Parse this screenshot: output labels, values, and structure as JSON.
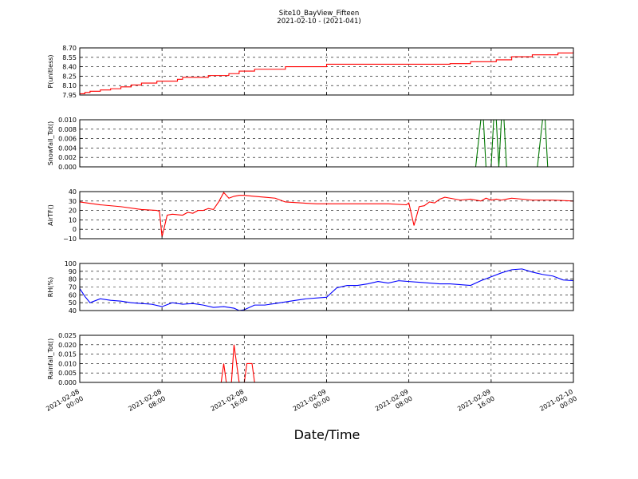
{
  "title": "Site10_BayView_Fifteen",
  "subtitle": "2021-02-10 - (2021-041)",
  "xlabel": "Date/Time",
  "x_ticks": [
    {
      "line1": "2021-02-08",
      "line2": "00:00"
    },
    {
      "line1": "2021-02-08",
      "line2": "08:00"
    },
    {
      "line1": "2021-02-08",
      "line2": "16:00"
    },
    {
      "line1": "2021-02-09",
      "line2": "00:00"
    },
    {
      "line1": "2021-02-09",
      "line2": "08:00"
    },
    {
      "line1": "2021-02-09",
      "line2": "16:00"
    },
    {
      "line1": "2021-02-10",
      "line2": "00:00"
    }
  ],
  "chart_data": [
    {
      "type": "line",
      "ylabel": "P(unitless)",
      "ylim": [
        7.95,
        8.7
      ],
      "yticks": [
        "7.95",
        "8.10",
        "8.25",
        "8.40",
        "8.55",
        "8.70"
      ],
      "ytick_values": [
        7.95,
        8.1,
        8.25,
        8.4,
        8.55,
        8.7
      ],
      "grid": true,
      "step": true,
      "color": "#ff0000",
      "x": [
        "2021-02-08 00:00",
        "2021-02-08 00:30",
        "2021-02-08 01:00",
        "2021-02-08 02:00",
        "2021-02-08 03:00",
        "2021-02-08 04:00",
        "2021-02-08 05:00",
        "2021-02-08 06:00",
        "2021-02-08 07:30",
        "2021-02-08 09:30",
        "2021-02-08 10:00",
        "2021-02-08 12:30",
        "2021-02-08 14:30",
        "2021-02-08 15:30",
        "2021-02-08 17:00",
        "2021-02-08 20:00",
        "2021-02-09 00:00",
        "2021-02-09 08:00",
        "2021-02-09 09:30",
        "2021-02-09 12:00",
        "2021-02-09 14:00",
        "2021-02-09 16:30",
        "2021-02-09 18:00",
        "2021-02-09 20:00",
        "2021-02-09 22:30",
        "2021-02-10 00:00"
      ],
      "y": [
        7.97,
        7.99,
        8.01,
        8.03,
        8.05,
        8.08,
        8.11,
        8.14,
        8.17,
        8.2,
        8.23,
        8.26,
        8.29,
        8.33,
        8.36,
        8.4,
        8.44,
        8.44,
        8.44,
        8.45,
        8.48,
        8.51,
        8.56,
        8.59,
        8.62,
        8.66
      ]
    },
    {
      "type": "line",
      "ylabel": "Snowfall_Tot()",
      "ylim": [
        0.0,
        0.01
      ],
      "yticks": [
        "0.000",
        "0.002",
        "0.004",
        "0.006",
        "0.008",
        "0.010"
      ],
      "ytick_values": [
        0.0,
        0.002,
        0.004,
        0.006,
        0.008,
        0.01
      ],
      "grid": true,
      "color": "#007700",
      "x": [
        "2021-02-08 00:00",
        "2021-02-09 14:30",
        "2021-02-09 15:00",
        "2021-02-09 15:15",
        "2021-02-09 15:30",
        "2021-02-09 15:45",
        "2021-02-09 16:00",
        "2021-02-09 16:15",
        "2021-02-09 16:30",
        "2021-02-09 16:45",
        "2021-02-09 17:00",
        "2021-02-09 17:15",
        "2021-02-09 17:30",
        "2021-02-09 17:45",
        "2021-02-09 18:00",
        "2021-02-09 18:15",
        "2021-02-09 18:30",
        "2021-02-09 20:30",
        "2021-02-09 21:00",
        "2021-02-09 21:15",
        "2021-02-09 21:30",
        "2021-02-10 00:00"
      ],
      "y": [
        0,
        0,
        0.01,
        0.01,
        0,
        0,
        0,
        0.01,
        0.01,
        0,
        0.01,
        0.01,
        0,
        0,
        0,
        0,
        0,
        0,
        0.01,
        0.01,
        0,
        0
      ]
    },
    {
      "type": "line",
      "ylabel": "AirTF()",
      "ylim": [
        -10,
        40
      ],
      "yticks": [
        "−10",
        "0",
        "10",
        "20",
        "30",
        "40"
      ],
      "ytick_values": [
        -10,
        0,
        10,
        20,
        30,
        40
      ],
      "grid": true,
      "color": "#ff0000",
      "x": [
        "2021-02-08 00:00",
        "2021-02-08 02:00",
        "2021-02-08 04:00",
        "2021-02-08 06:00",
        "2021-02-08 07:30",
        "2021-02-08 07:45",
        "2021-02-08 08:00",
        "2021-02-08 08:30",
        "2021-02-08 09:00",
        "2021-02-08 10:00",
        "2021-02-08 10:30",
        "2021-02-08 11:00",
        "2021-02-08 11:30",
        "2021-02-08 12:00",
        "2021-02-08 12:30",
        "2021-02-08 13:00",
        "2021-02-08 13:30",
        "2021-02-08 14:00",
        "2021-02-08 14:30",
        "2021-02-08 15:00",
        "2021-02-08 15:30",
        "2021-02-08 16:00",
        "2021-02-08 17:00",
        "2021-02-08 18:00",
        "2021-02-08 19:00",
        "2021-02-08 20:00",
        "2021-02-08 23:00",
        "2021-02-09 02:00",
        "2021-02-09 06:00",
        "2021-02-09 07:45",
        "2021-02-09 08:00",
        "2021-02-09 08:30",
        "2021-02-09 09:00",
        "2021-02-09 09:30",
        "2021-02-09 10:00",
        "2021-02-09 10:30",
        "2021-02-09 11:00",
        "2021-02-09 11:30",
        "2021-02-09 12:00",
        "2021-02-09 13:00",
        "2021-02-09 14:00",
        "2021-02-09 15:00",
        "2021-02-09 15:30",
        "2021-02-09 16:00",
        "2021-02-09 16:30",
        "2021-02-09 17:00",
        "2021-02-09 17:30",
        "2021-02-09 18:00",
        "2021-02-09 20:00",
        "2021-02-09 22:00",
        "2021-02-10 00:00"
      ],
      "y": [
        29,
        26,
        24,
        21,
        20,
        19,
        -8,
        15,
        16,
        15,
        18,
        17,
        20,
        20,
        22,
        21,
        29,
        39,
        33,
        35,
        36,
        36,
        35,
        34,
        33,
        29,
        27,
        27,
        27,
        26,
        28,
        4,
        24,
        25,
        29,
        28,
        32,
        34,
        33,
        31,
        32,
        30,
        33,
        31,
        32,
        31,
        32,
        33,
        31,
        31,
        30
      ]
    },
    {
      "type": "line",
      "ylabel": "RH(%)",
      "ylim": [
        40,
        100
      ],
      "yticks": [
        "40",
        "50",
        "60",
        "70",
        "80",
        "90",
        "100"
      ],
      "ytick_values": [
        40,
        50,
        60,
        70,
        80,
        90,
        100
      ],
      "grid": true,
      "color": "#0000ff",
      "x": [
        "2021-02-08 00:00",
        "2021-02-08 00:30",
        "2021-02-08 01:00",
        "2021-02-08 02:00",
        "2021-02-08 03:00",
        "2021-02-08 04:00",
        "2021-02-08 05:00",
        "2021-02-08 06:00",
        "2021-02-08 07:00",
        "2021-02-08 08:00",
        "2021-02-08 09:00",
        "2021-02-08 10:00",
        "2021-02-08 11:00",
        "2021-02-08 12:00",
        "2021-02-08 13:00",
        "2021-02-08 14:00",
        "2021-02-08 15:00",
        "2021-02-08 15:30",
        "2021-02-08 16:00",
        "2021-02-08 17:00",
        "2021-02-08 18:00",
        "2021-02-08 19:00",
        "2021-02-08 20:00",
        "2021-02-08 21:00",
        "2021-02-08 22:00",
        "2021-02-09 00:00",
        "2021-02-09 01:00",
        "2021-02-09 02:00",
        "2021-02-09 03:00",
        "2021-02-09 04:00",
        "2021-02-09 05:00",
        "2021-02-09 06:00",
        "2021-02-09 07:00",
        "2021-02-09 08:00",
        "2021-02-09 09:00",
        "2021-02-09 10:00",
        "2021-02-09 11:00",
        "2021-02-09 12:00",
        "2021-02-09 13:00",
        "2021-02-09 14:00",
        "2021-02-09 15:00",
        "2021-02-09 16:00",
        "2021-02-09 17:00",
        "2021-02-09 18:00",
        "2021-02-09 19:00",
        "2021-02-09 20:00",
        "2021-02-09 21:00",
        "2021-02-09 22:00",
        "2021-02-09 23:00",
        "2021-02-10 00:00"
      ],
      "y": [
        68,
        58,
        50,
        55,
        53,
        52,
        50,
        49,
        48,
        45,
        50,
        48,
        49,
        47,
        44,
        45,
        43,
        40,
        41,
        47,
        47,
        49,
        51,
        53,
        55,
        57,
        69,
        72,
        72,
        74,
        77,
        75,
        78,
        77,
        76,
        75,
        74,
        74,
        73,
        72,
        78,
        83,
        88,
        92,
        93,
        89,
        86,
        84,
        79,
        78
      ]
    },
    {
      "type": "line",
      "ylabel": "Rainfall_Tot()",
      "ylim": [
        0.0,
        0.025
      ],
      "yticks": [
        "0.000",
        "0.005",
        "0.010",
        "0.015",
        "0.020",
        "0.025"
      ],
      "ytick_values": [
        0.0,
        0.005,
        0.01,
        0.015,
        0.02,
        0.025
      ],
      "grid": true,
      "color": "#ff0000",
      "x": [
        "2021-02-08 00:00",
        "2021-02-08 13:45",
        "2021-02-08 14:00",
        "2021-02-08 14:15",
        "2021-02-08 14:30",
        "2021-02-08 14:45",
        "2021-02-08 15:00",
        "2021-02-08 15:15",
        "2021-02-08 15:30",
        "2021-02-08 15:45",
        "2021-02-08 16:00",
        "2021-02-08 16:15",
        "2021-02-08 16:30",
        "2021-02-08 16:45",
        "2021-02-08 17:00",
        "2021-02-08 17:15",
        "2021-02-10 00:00"
      ],
      "y": [
        0,
        0,
        0.01,
        0,
        0,
        0,
        0.02,
        0.01,
        0,
        0,
        0,
        0.01,
        0.01,
        0.01,
        0,
        0,
        0
      ]
    }
  ]
}
